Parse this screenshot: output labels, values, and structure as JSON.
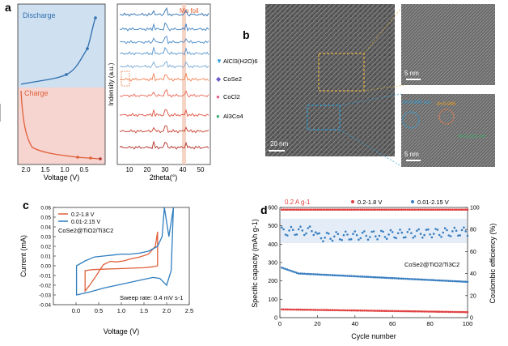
{
  "panel_labels": {
    "a": "a",
    "b": "b",
    "c": "c",
    "d": "d"
  },
  "colors": {
    "discharge_fill": "#cfe0f0",
    "charge_fill": "#f6d4cf",
    "discharge_line": "#2f6fb0",
    "charge_line": "#e0603a",
    "accent_orange": "#f08050",
    "accent_blue": "#2a9bd6",
    "accent_green": "#3aae6a",
    "accent_pink": "#e05c8c",
    "red": "#e04040",
    "blue_pts": "#3a7ec0"
  },
  "panel_a": {
    "discharge_label": "Discharge",
    "charge_label": "Charge",
    "xlabel": "Voltage (V)",
    "xticks": [
      "2.0",
      "1.5",
      "1.0",
      "0.5"
    ],
    "xrd": {
      "mo_foil_label": "Mo foil",
      "ylabel": "Indensity (a.u.)",
      "xlabel": "2theta(°)",
      "xticks": [
        "10",
        "20",
        "30",
        "40",
        "50"
      ],
      "legend": [
        {
          "symbol": "▼",
          "label": "AlCl3(H2O)6"
        },
        {
          "symbol": "◆",
          "label": "CoSe2"
        },
        {
          "symbol": "●",
          "label": "CoCl2"
        },
        {
          "symbol": "●",
          "label": "Al3Co4"
        }
      ]
    }
  },
  "panel_b": {
    "scale_main": "20 nm",
    "scale_top": "5 nm",
    "scale_bottom": "5 nm",
    "lattice1": "d=0.945 nm",
    "lattice2": "d=0.945",
    "lattice3": "d=0.213 nm"
  },
  "chart_data": [
    {
      "type": "line",
      "title": "CoSe2@TiO2/Ti3C2",
      "xlabel": "Voltage (V)",
      "ylabel": "Current (mA)",
      "xlim": [
        -0.5,
        2.5
      ],
      "ylim": [
        -0.04,
        0.06
      ],
      "xticks": [
        "0.0",
        "0.5",
        "1.0",
        "1.5",
        "2.0",
        "2.5"
      ],
      "yticks": [
        "-0.04",
        "-0.03",
        "-0.02",
        "-0.01",
        "0.00",
        "0.01",
        "0.02",
        "0.03",
        "0.04",
        "0.05",
        "0.06"
      ],
      "annotation": "Sweep rate: 0.4 mV s-1",
      "series": [
        {
          "name": "0.2-1.8 V",
          "color": "#e0603a",
          "x": [
            0.2,
            0.35,
            0.6,
            0.9,
            1.2,
            1.5,
            1.7,
            1.8,
            1.8,
            1.75,
            1.6,
            1.4,
            1.2,
            1.05,
            0.9,
            0.75,
            0.6,
            0.45,
            0.3,
            0.2
          ],
          "y": [
            -0.005,
            -0.004,
            -0.0035,
            -0.003,
            -0.0025,
            -0.002,
            -0.001,
            0.0,
            0.035,
            0.02,
            0.012,
            0.009,
            0.007,
            0.005,
            0.004,
            0.0045,
            0.001,
            -0.01,
            -0.02,
            -0.026
          ]
        },
        {
          "name": "0.01-2.15 V",
          "color": "#2f7dc0",
          "x": [
            0.01,
            0.3,
            0.6,
            0.9,
            1.2,
            1.5,
            1.7,
            1.85,
            2.0,
            2.1,
            2.15,
            2.1,
            2.05,
            2.0,
            1.95,
            1.9,
            1.8,
            1.6,
            1.4,
            1.2,
            1.0,
            0.8,
            0.6,
            0.4,
            0.2,
            0.01
          ],
          "y": [
            -0.03,
            -0.027,
            -0.023,
            -0.02,
            -0.017,
            -0.014,
            -0.012,
            -0.013,
            -0.02,
            -0.005,
            0.06,
            0.045,
            0.03,
            0.045,
            0.06,
            0.03,
            0.02,
            0.015,
            0.013,
            0.012,
            0.012,
            0.011,
            0.01,
            0.009,
            0.005,
            0.0
          ]
        }
      ]
    },
    {
      "type": "scatter",
      "header_note": "0.2 A g-1",
      "xlabel": "Cycle number",
      "ylabel": "Specific capacity (mAh g-1)",
      "y2label": "Coulombic efficiency (%)",
      "xlim": [
        0,
        100
      ],
      "ylim": [
        0,
        600
      ],
      "y2lim": [
        0,
        100
      ],
      "xticks": [
        "0",
        "20",
        "40",
        "60",
        "80",
        "100"
      ],
      "yticks": [
        "0",
        "100",
        "200",
        "300",
        "400",
        "500",
        "600"
      ],
      "y2ticks": [
        "0",
        "20",
        "40",
        "60",
        "80",
        "100"
      ],
      "inset_label": "CoSe2@TiO2/Ti3C2",
      "legend": [
        "0.2-1.8 V",
        "0.01-2.15 V"
      ],
      "series": [
        {
          "name": "0.2-1.8 V CE",
          "color": "#e04040",
          "axis": "right",
          "x_start": 1,
          "x_end": 100,
          "y_start": 98,
          "y_end": 98
        },
        {
          "name": "0.01-2.15 V CE",
          "color": "#3a7ec0",
          "axis": "right",
          "x_start": 1,
          "x_end": 100,
          "y_start": 72,
          "y_end": 78
        },
        {
          "name": "0.01-2.15 V capacity",
          "color": "#3a7ec0",
          "axis": "left",
          "x_start": 1,
          "x_end": 100,
          "y_start": 245,
          "y_end": 195
        },
        {
          "name": "0.2-1.8 V capacity",
          "color": "#e04040",
          "axis": "left",
          "x_start": 1,
          "x_end": 100,
          "y_start": 45,
          "y_end": 30
        }
      ]
    }
  ]
}
